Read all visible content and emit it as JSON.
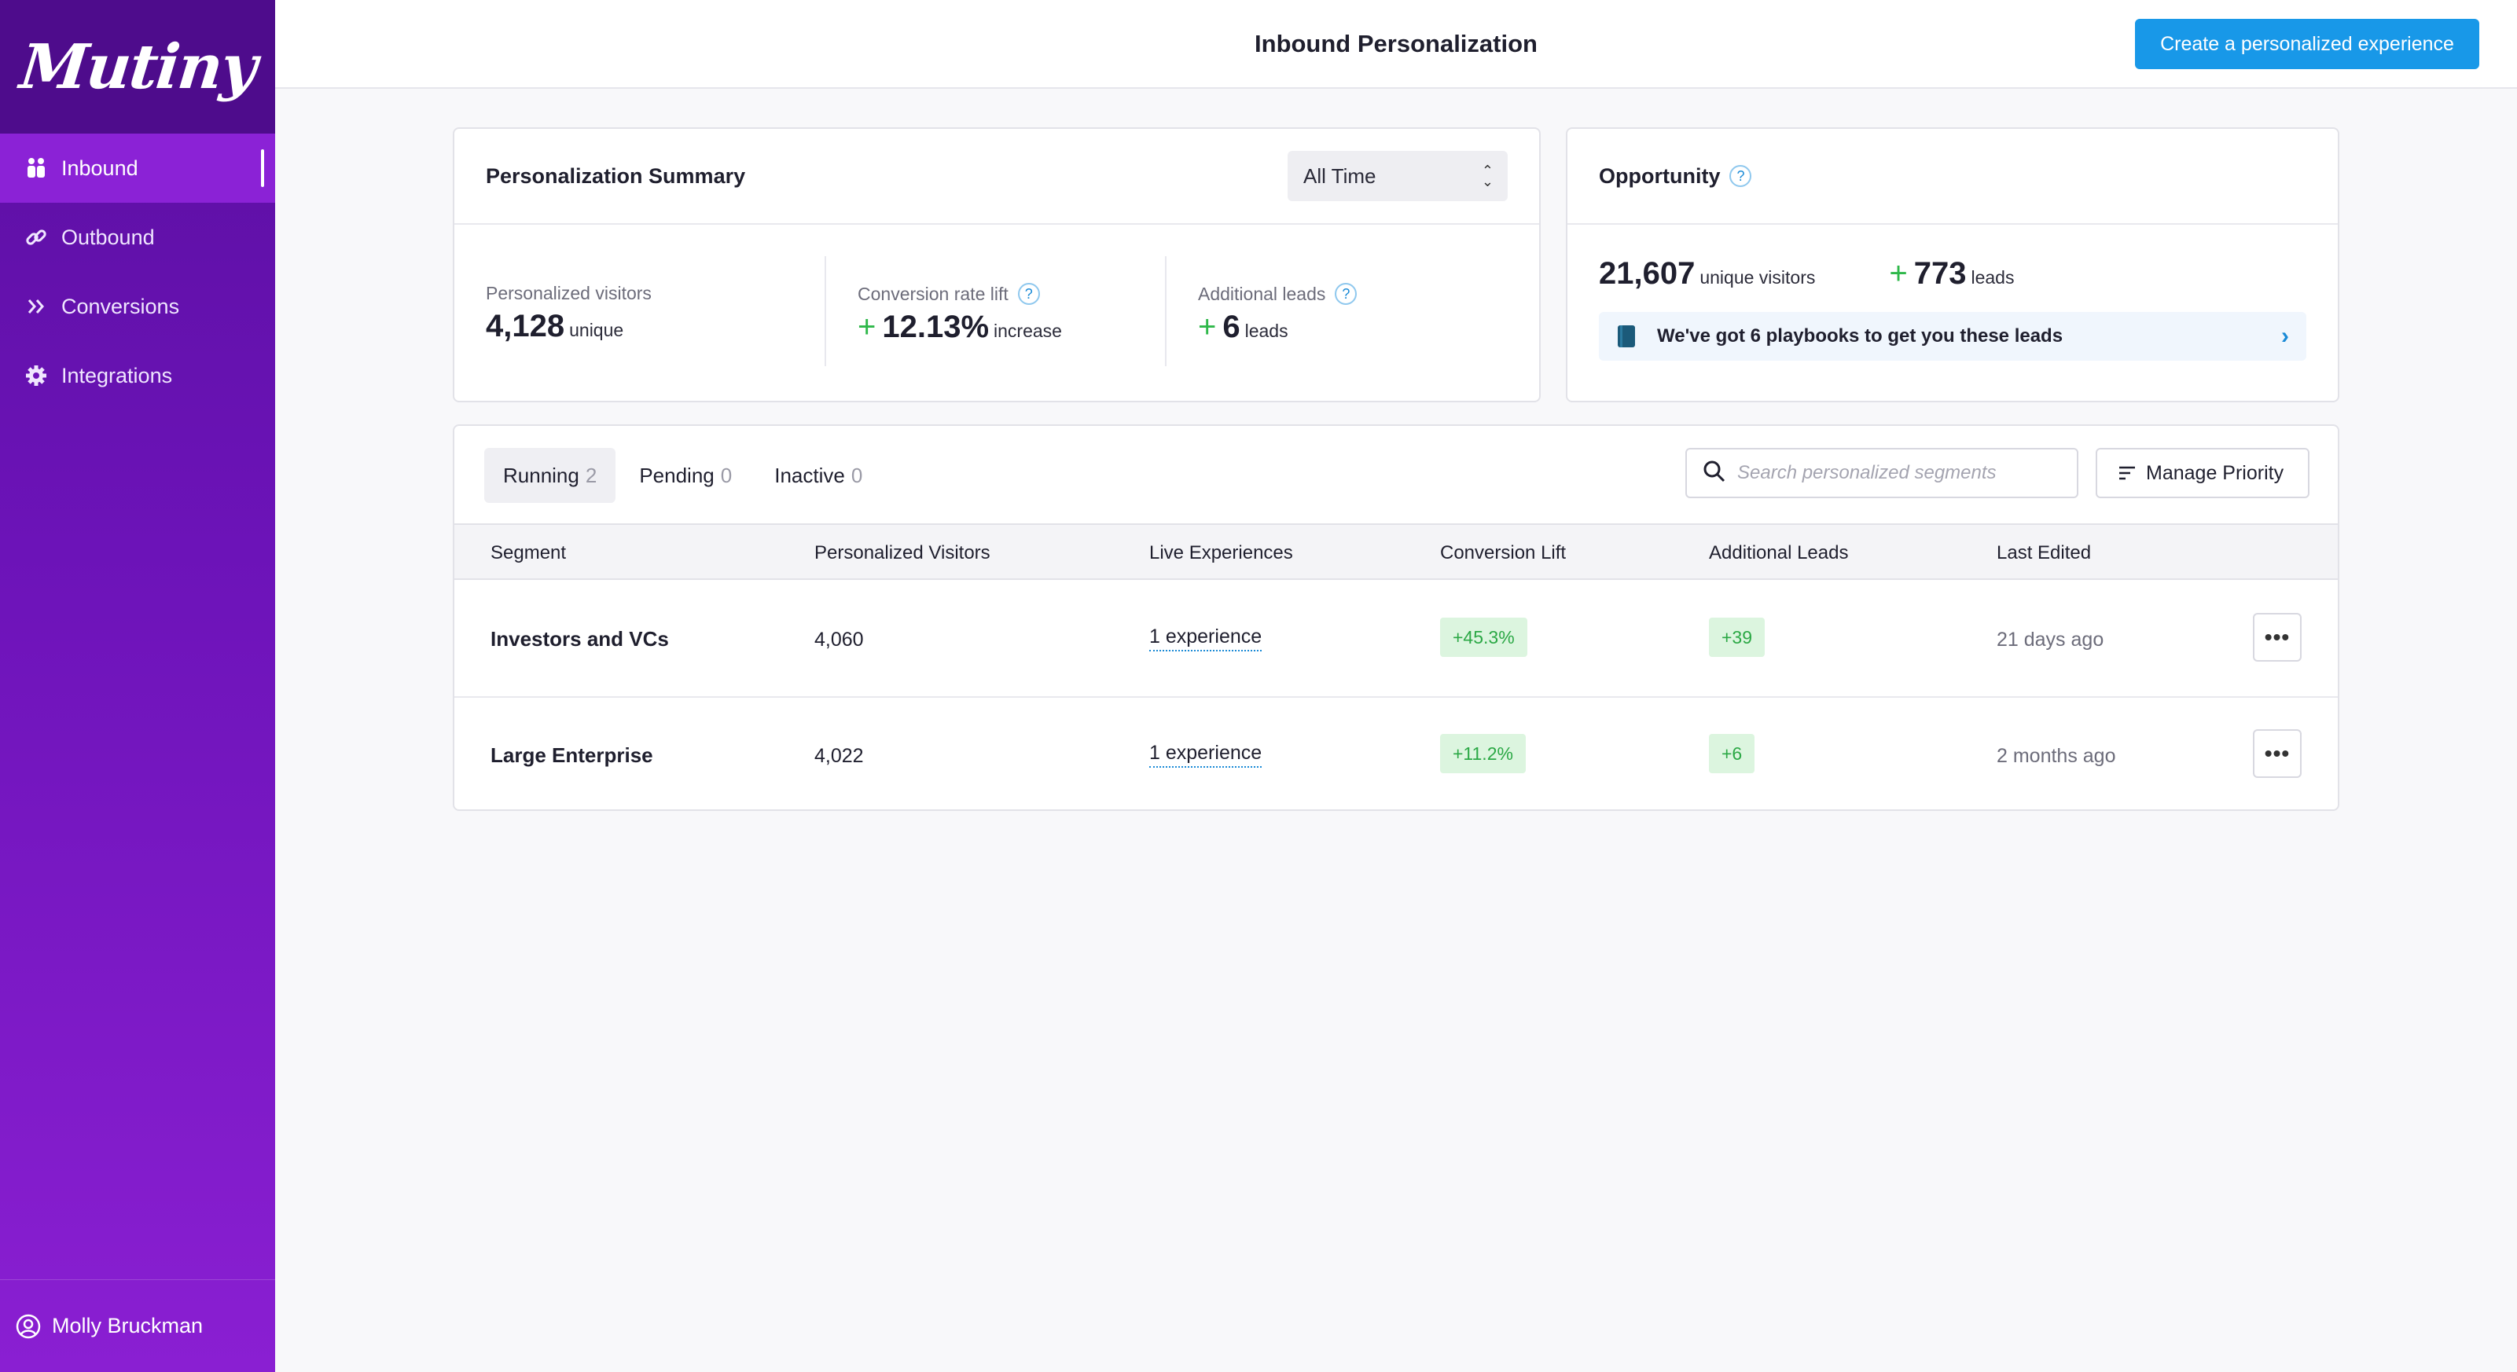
{
  "app": {
    "logo_text": "Mutiny"
  },
  "sidebar": {
    "items": [
      {
        "label": "Inbound",
        "icon": "people-icon",
        "active": true
      },
      {
        "label": "Outbound",
        "icon": "link-icon",
        "active": false
      },
      {
        "label": "Conversions",
        "icon": "double-chevron-icon",
        "active": false
      },
      {
        "label": "Integrations",
        "icon": "gear-icon",
        "active": false
      }
    ],
    "user": {
      "name": "Molly Bruckman",
      "icon": "user-circle-icon"
    }
  },
  "header": {
    "title": "Inbound Personalization",
    "create_button": "Create a personalized experience"
  },
  "summary": {
    "title": "Personalization Summary",
    "range_select": "All Time",
    "metrics": [
      {
        "label": "Personalized visitors",
        "value": "4,128",
        "unit": "unique",
        "plus": ""
      },
      {
        "label": "Conversion rate lift",
        "value": "12.13%",
        "unit": "increase",
        "plus": "+"
      },
      {
        "label": "Additional leads",
        "value": "6",
        "unit": "leads",
        "plus": "+"
      }
    ],
    "help_glyph": "?"
  },
  "opportunity": {
    "title": "Opportunity",
    "visitors_value": "21,607",
    "visitors_unit": "unique visitors",
    "leads_plus": "+",
    "leads_value": "773",
    "leads_unit": "leads",
    "playbook_text": "We've got 6 playbooks to get you these leads"
  },
  "segments": {
    "tabs": [
      {
        "label": "Running",
        "count": "2",
        "active": true
      },
      {
        "label": "Pending",
        "count": "0",
        "active": false
      },
      {
        "label": "Inactive",
        "count": "0",
        "active": false
      }
    ],
    "search_placeholder": "Search personalized segments",
    "manage_priority": "Manage Priority",
    "columns": [
      "Segment",
      "Personalized Visitors",
      "Live Experiences",
      "Conversion Lift",
      "Additional Leads",
      "Last Edited"
    ],
    "rows": [
      {
        "segment": "Investors and VCs",
        "visitors": "4,060",
        "experiences": "1 experience",
        "lift": "+45.3%",
        "leads": "+39",
        "edited": "21 days ago"
      },
      {
        "segment": "Large Enterprise",
        "visitors": "4,022",
        "experiences": "1 experience",
        "lift": "+11.2%",
        "leads": "+6",
        "edited": "2 months ago"
      }
    ],
    "more_glyph": "•••"
  }
}
